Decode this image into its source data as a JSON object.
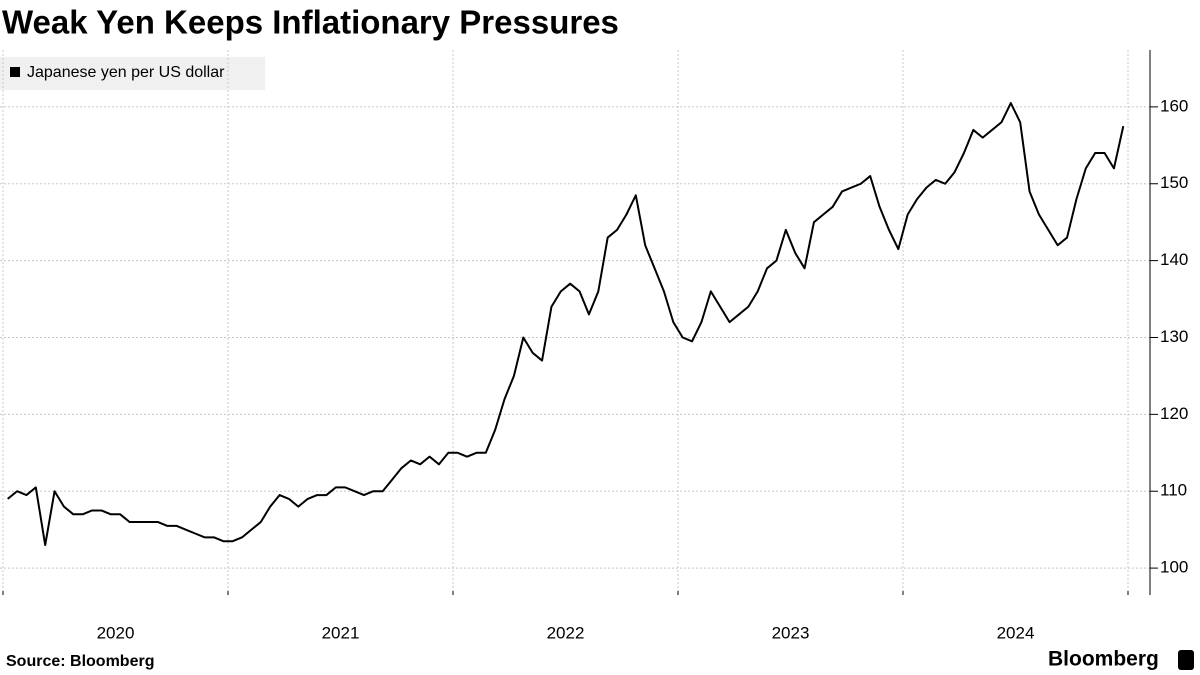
{
  "chart_data": {
    "type": "line",
    "title": "Weak Yen Keeps Inflationary Pressures",
    "source": "Source: Bloomberg",
    "brand": "Bloomberg",
    "categories": [
      null,
      null,
      null,
      null,
      null,
      null,
      null,
      null,
      null,
      null,
      null,
      null,
      "2020",
      null,
      null,
      null,
      null,
      null,
      null,
      null,
      null,
      null,
      null,
      null,
      null,
      null,
      null,
      null,
      null,
      null,
      null,
      null,
      null,
      null,
      null,
      null,
      "2021",
      null,
      null,
      null,
      null,
      null,
      null,
      null,
      null,
      null,
      null,
      null,
      null,
      null,
      null,
      null,
      null,
      null,
      null,
      null,
      null,
      null,
      null,
      null,
      "2022",
      null,
      null,
      null,
      null,
      null,
      null,
      null,
      null,
      null,
      null,
      null,
      null,
      null,
      null,
      null,
      null,
      null,
      null,
      null,
      null,
      null,
      null,
      null,
      "2023",
      null,
      null,
      null,
      null,
      null,
      null,
      null,
      null,
      null,
      null,
      null,
      null,
      null,
      null,
      null,
      null,
      null,
      null,
      null,
      null,
      null,
      null,
      null,
      "2024",
      null,
      null,
      null,
      null,
      null,
      null,
      null,
      null,
      null,
      null,
      null
    ],
    "series": [
      {
        "name": "Japanese yen per US dollar",
        "color": "#000000",
        "values": [
          109,
          110,
          109.5,
          110.5,
          103,
          110,
          108,
          107,
          107,
          107.5,
          107.5,
          107,
          107,
          106,
          106,
          106,
          106,
          105.5,
          105.5,
          105,
          104.5,
          104,
          104,
          103.5,
          103.5,
          104,
          105,
          106,
          108,
          109.5,
          109,
          108,
          109,
          109.5,
          109.5,
          110.5,
          110.5,
          110,
          109.5,
          110,
          110,
          111.5,
          113,
          114,
          113.5,
          114.5,
          113.5,
          115,
          115,
          114.5,
          115,
          115,
          118,
          122,
          125,
          130,
          128,
          127,
          134,
          136,
          137,
          136,
          133,
          136,
          143,
          144,
          146,
          148.5,
          142,
          139,
          136,
          132,
          130,
          129.5,
          132,
          136,
          134,
          132,
          133,
          134,
          136,
          139,
          140,
          144,
          141,
          139,
          145,
          146,
          147,
          149,
          149.5,
          150,
          151,
          147,
          144,
          141.5,
          146,
          148,
          149.5,
          150.5,
          150,
          151.5,
          154,
          157,
          156,
          157,
          158,
          160.5,
          158,
          149,
          146,
          144,
          142,
          143,
          148,
          152,
          154,
          154,
          152,
          157.5
        ]
      }
    ],
    "ylim": [
      96.5,
      167.4
    ],
    "yticks": [
      100,
      110,
      120,
      130,
      140,
      150,
      160
    ],
    "grid": true
  }
}
